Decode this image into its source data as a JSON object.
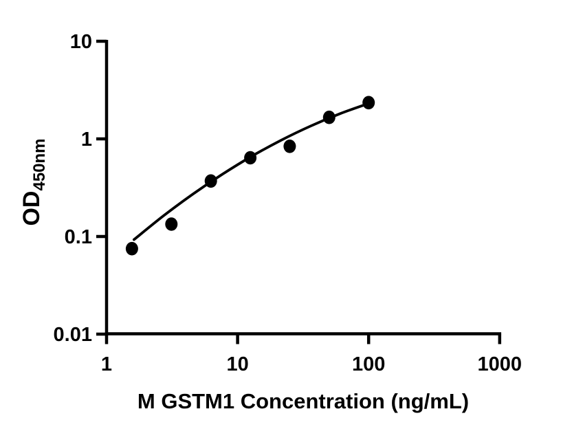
{
  "figure": {
    "background_color": "#ffffff",
    "foreground_color": "#000000"
  },
  "chart_data": {
    "type": "scatter",
    "title": "",
    "xlabel": "M GSTM1 Concentration (ng/mL)",
    "ylabel": "OD",
    "ylabel_subscript": "450nm",
    "x_scale": "log10",
    "y_scale": "log10",
    "xlim": [
      1,
      1000
    ],
    "ylim": [
      0.01,
      10
    ],
    "x_ticks": [
      1,
      10,
      100,
      1000
    ],
    "x_tick_labels": [
      "1",
      "10",
      "100",
      "1000"
    ],
    "y_ticks": [
      10,
      1,
      0.1,
      0.01
    ],
    "y_tick_labels": [
      "10",
      "1",
      "0.1",
      "0.01"
    ],
    "grid": false,
    "legend": false,
    "marker": {
      "shape": "circle",
      "color": "#000000"
    },
    "curve_color": "#000000",
    "points": [
      {
        "x": 1.5625,
        "y": 0.075
      },
      {
        "x": 3.125,
        "y": 0.134
      },
      {
        "x": 6.25,
        "y": 0.37
      },
      {
        "x": 12.5,
        "y": 0.64
      },
      {
        "x": 25,
        "y": 0.84
      },
      {
        "x": 50,
        "y": 1.66
      },
      {
        "x": 100,
        "y": 2.35
      }
    ],
    "fit_curve": [
      {
        "x": 1.62,
        "y": 0.093
      },
      {
        "x": 2.72,
        "y": 0.163
      },
      {
        "x": 4.56,
        "y": 0.272
      },
      {
        "x": 7.65,
        "y": 0.434
      },
      {
        "x": 12.8,
        "y": 0.663
      },
      {
        "x": 21.5,
        "y": 0.969
      },
      {
        "x": 36.1,
        "y": 1.355
      },
      {
        "x": 60.6,
        "y": 1.814
      },
      {
        "x": 101.6,
        "y": 2.323
      }
    ]
  }
}
